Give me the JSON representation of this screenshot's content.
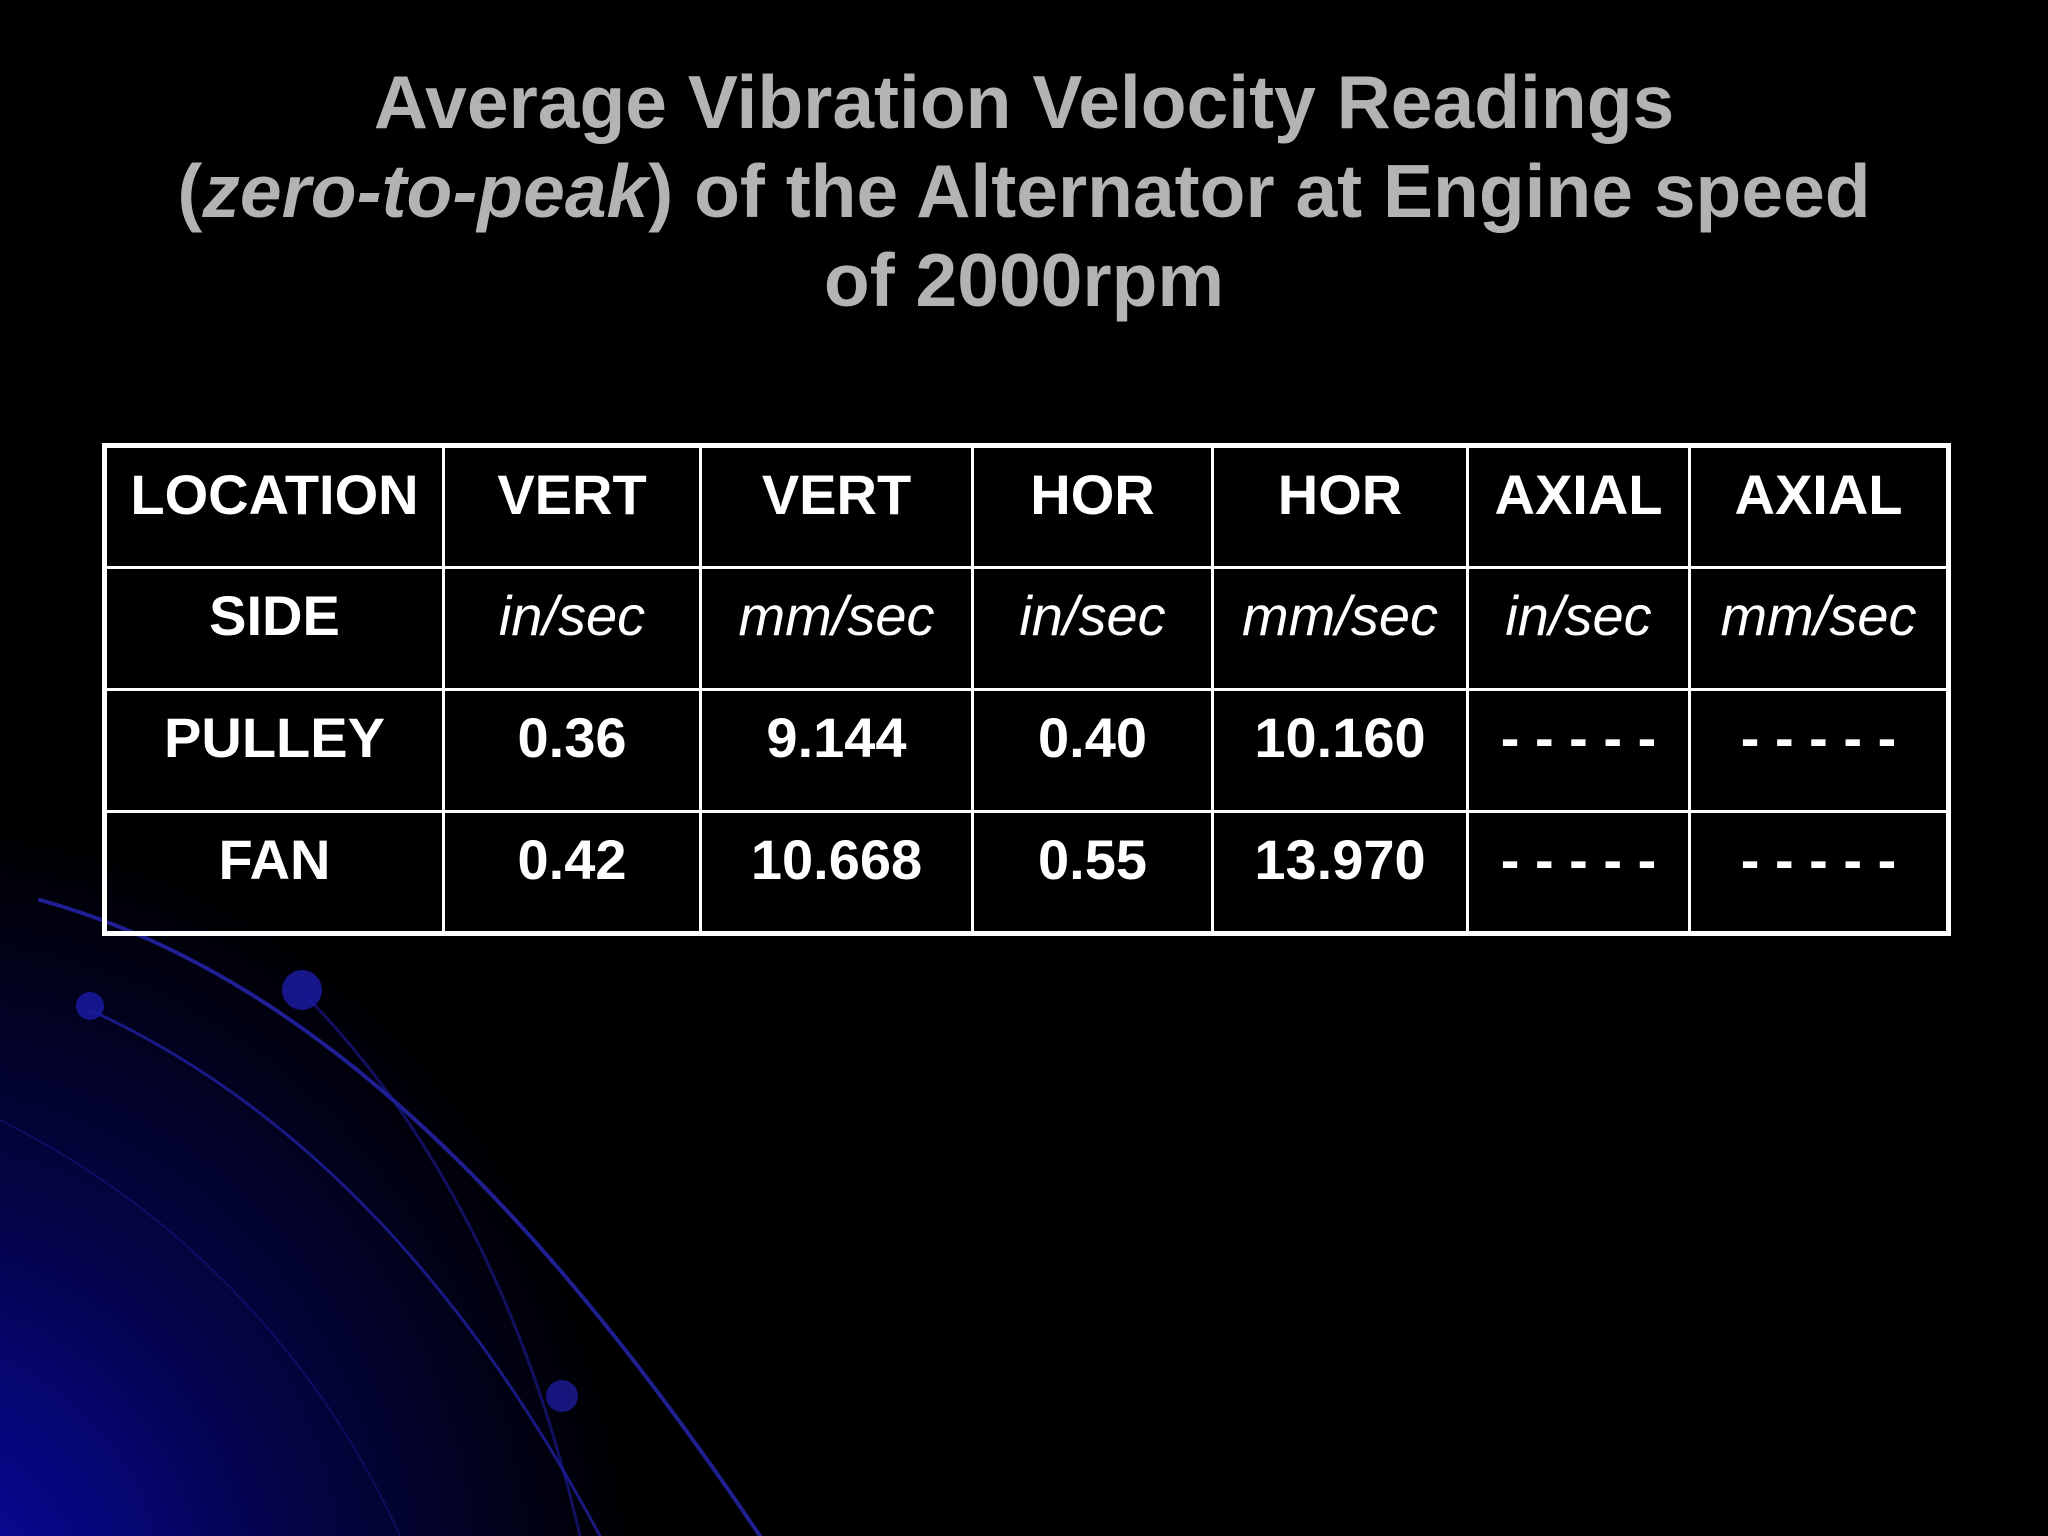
{
  "slide": {
    "title_line1": "Average Vibration Velocity Readings",
    "title_line2_open": "(",
    "title_line2_italic": "zero-to-peak",
    "title_line2_rest": ") of the Alternator at Engine speed",
    "title_line3": "of 2000rpm"
  },
  "table": {
    "header": [
      "LOCATION",
      "VERT",
      "VERT",
      "HOR",
      "HOR",
      "AXIAL",
      "AXIAL"
    ],
    "units": [
      "SIDE",
      "in/sec",
      "mm/sec",
      "in/sec",
      "mm/sec",
      "in/sec",
      "mm/sec"
    ],
    "rows": [
      [
        "PULLEY",
        "0.36",
        "9.144",
        "0.40",
        "10.160",
        "- - - - -",
        "- - - - -"
      ],
      [
        "FAN",
        "0.42",
        "10.668",
        "0.55",
        "13.970",
        "- - - - -",
        "- - - - -"
      ]
    ]
  }
}
